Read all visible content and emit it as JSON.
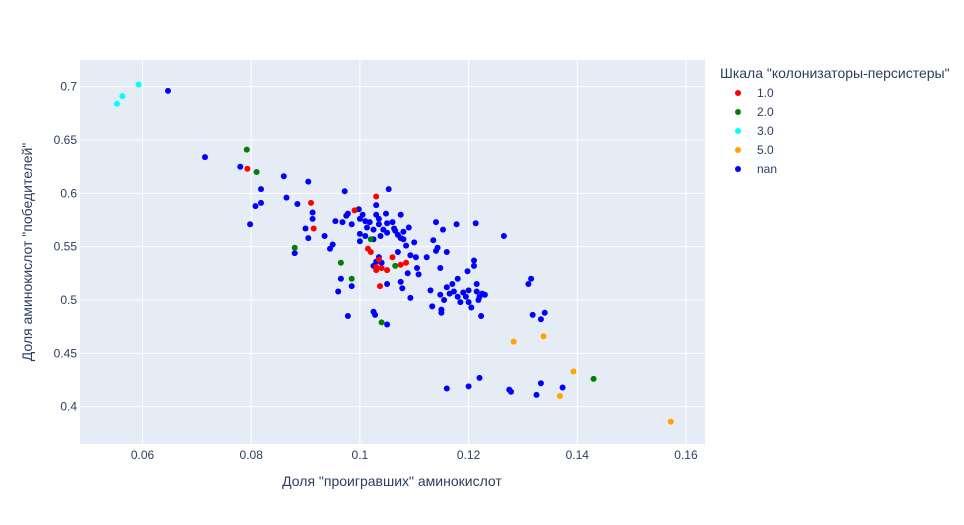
{
  "chart_data": {
    "type": "scatter",
    "xlabel": "Доля \"проигравших\" аминокислот",
    "ylabel": "Доля аминокислот \"победителей\"",
    "xlim": [
      0.0485,
      0.1635
    ],
    "ylim": [
      0.365,
      0.725
    ],
    "xticks": [
      0.06,
      0.08,
      0.1,
      0.12,
      0.14,
      0.16
    ],
    "xtick_labels": [
      "0.06",
      "0.08",
      "0.1",
      "0.12",
      "0.14",
      "0.16"
    ],
    "yticks": [
      0.4,
      0.45,
      0.5,
      0.55,
      0.6,
      0.65,
      0.7
    ],
    "ytick_labels": [
      "0.4",
      "0.45",
      "0.5",
      "0.55",
      "0.6",
      "0.65",
      "0.7"
    ],
    "grid": true,
    "plot_bgcolor": "#e5ecf6",
    "legend": {
      "title": "Шкала \"колонизаторы-персистеры\"",
      "placement": "right"
    },
    "series": [
      {
        "name": "1.0",
        "color": "#ff0000",
        "points": [
          [
            0.0793,
            0.623
          ],
          [
            0.091,
            0.591
          ],
          [
            0.0915,
            0.567
          ],
          [
            0.099,
            0.584
          ],
          [
            0.103,
            0.597
          ],
          [
            0.1015,
            0.548
          ],
          [
            0.102,
            0.545
          ],
          [
            0.106,
            0.54
          ],
          [
            0.1035,
            0.538
          ],
          [
            0.103,
            0.531
          ],
          [
            0.103,
            0.528
          ],
          [
            0.104,
            0.53
          ],
          [
            0.105,
            0.528
          ],
          [
            0.1075,
            0.533
          ],
          [
            0.1085,
            0.535
          ],
          [
            0.1037,
            0.513
          ]
        ]
      },
      {
        "name": "2.0",
        "color": "#008000",
        "points": [
          [
            0.0792,
            0.641
          ],
          [
            0.081,
            0.62
          ],
          [
            0.088,
            0.549
          ],
          [
            0.0965,
            0.535
          ],
          [
            0.0985,
            0.52
          ],
          [
            0.102,
            0.557
          ],
          [
            0.1065,
            0.532
          ],
          [
            0.104,
            0.479
          ],
          [
            0.143,
            0.426
          ]
        ]
      },
      {
        "name": "3.0",
        "color": "#00ffff",
        "points": [
          [
            0.0553,
            0.684
          ],
          [
            0.0563,
            0.691
          ],
          [
            0.0593,
            0.702
          ]
        ]
      },
      {
        "name": "5.0",
        "color": "#ffa500",
        "points": [
          [
            0.1283,
            0.461
          ],
          [
            0.1338,
            0.466
          ],
          [
            0.1393,
            0.433
          ],
          [
            0.1368,
            0.41
          ],
          [
            0.1572,
            0.386
          ]
        ]
      },
      {
        "name": "nan",
        "color": "#0000ff",
        "points": [
          [
            0.0647,
            0.696
          ],
          [
            0.0715,
            0.634
          ],
          [
            0.078,
            0.625
          ],
          [
            0.086,
            0.616
          ],
          [
            0.0818,
            0.604
          ],
          [
            0.0905,
            0.611
          ],
          [
            0.0865,
            0.596
          ],
          [
            0.0818,
            0.591
          ],
          [
            0.0808,
            0.588
          ],
          [
            0.0885,
            0.59
          ],
          [
            0.0798,
            0.571
          ],
          [
            0.088,
            0.544
          ],
          [
            0.0905,
            0.558
          ],
          [
            0.0913,
            0.582
          ],
          [
            0.0913,
            0.576
          ],
          [
            0.09,
            0.567
          ],
          [
            0.0935,
            0.56
          ],
          [
            0.0945,
            0.548
          ],
          [
            0.095,
            0.552
          ],
          [
            0.0955,
            0.574
          ],
          [
            0.0968,
            0.573
          ],
          [
            0.0975,
            0.579
          ],
          [
            0.0972,
            0.602
          ],
          [
            0.0978,
            0.581
          ],
          [
            0.0985,
            0.571
          ],
          [
            0.0998,
            0.585
          ],
          [
            0.1,
            0.576
          ],
          [
            0.1005,
            0.58
          ],
          [
            0.1,
            0.562
          ],
          [
            0.1,
            0.555
          ],
          [
            0.101,
            0.574
          ],
          [
            0.1013,
            0.568
          ],
          [
            0.101,
            0.56
          ],
          [
            0.1018,
            0.573
          ],
          [
            0.1025,
            0.566
          ],
          [
            0.1025,
            0.557
          ],
          [
            0.103,
            0.589
          ],
          [
            0.103,
            0.58
          ],
          [
            0.1035,
            0.576
          ],
          [
            0.1035,
            0.571
          ],
          [
            0.1038,
            0.56
          ],
          [
            0.1043,
            0.566
          ],
          [
            0.1048,
            0.581
          ],
          [
            0.105,
            0.572
          ],
          [
            0.105,
            0.563
          ],
          [
            0.1053,
            0.604
          ],
          [
            0.106,
            0.573
          ],
          [
            0.1063,
            0.567
          ],
          [
            0.1065,
            0.565
          ],
          [
            0.107,
            0.561
          ],
          [
            0.1075,
            0.58
          ],
          [
            0.1075,
            0.558
          ],
          [
            0.108,
            0.564
          ],
          [
            0.108,
            0.557
          ],
          [
            0.1085,
            0.551
          ],
          [
            0.109,
            0.568
          ],
          [
            0.11,
            0.554
          ],
          [
            0.1093,
            0.542
          ],
          [
            0.1103,
            0.54
          ],
          [
            0.107,
            0.545
          ],
          [
            0.1035,
            0.54
          ],
          [
            0.103,
            0.536
          ],
          [
            0.1025,
            0.532
          ],
          [
            0.104,
            0.535
          ],
          [
            0.0985,
            0.513
          ],
          [
            0.096,
            0.508
          ],
          [
            0.0965,
            0.52
          ],
          [
            0.0978,
            0.485
          ],
          [
            0.1025,
            0.489
          ],
          [
            0.1028,
            0.486
          ],
          [
            0.105,
            0.515
          ],
          [
            0.105,
            0.477
          ],
          [
            0.1075,
            0.517
          ],
          [
            0.1078,
            0.511
          ],
          [
            0.1088,
            0.525
          ],
          [
            0.1093,
            0.502
          ],
          [
            0.1105,
            0.53
          ],
          [
            0.1108,
            0.524
          ],
          [
            0.1123,
            0.54
          ],
          [
            0.113,
            0.509
          ],
          [
            0.1133,
            0.494
          ],
          [
            0.1135,
            0.556
          ],
          [
            0.114,
            0.546
          ],
          [
            0.114,
            0.573
          ],
          [
            0.1143,
            0.549
          ],
          [
            0.1148,
            0.53
          ],
          [
            0.1148,
            0.505
          ],
          [
            0.115,
            0.491
          ],
          [
            0.115,
            0.488
          ],
          [
            0.1153,
            0.566
          ],
          [
            0.1155,
            0.5
          ],
          [
            0.116,
            0.545
          ],
          [
            0.116,
            0.512
          ],
          [
            0.116,
            0.417
          ],
          [
            0.1165,
            0.506
          ],
          [
            0.117,
            0.515
          ],
          [
            0.1173,
            0.508
          ],
          [
            0.1178,
            0.571
          ],
          [
            0.118,
            0.52
          ],
          [
            0.118,
            0.503
          ],
          [
            0.1185,
            0.498
          ],
          [
            0.119,
            0.507
          ],
          [
            0.1195,
            0.503
          ],
          [
            0.1198,
            0.527
          ],
          [
            0.12,
            0.509
          ],
          [
            0.12,
            0.498
          ],
          [
            0.12,
            0.419
          ],
          [
            0.1205,
            0.493
          ],
          [
            0.121,
            0.537
          ],
          [
            0.121,
            0.532
          ],
          [
            0.1213,
            0.572
          ],
          [
            0.1215,
            0.515
          ],
          [
            0.1215,
            0.508
          ],
          [
            0.1218,
            0.5
          ],
          [
            0.122,
            0.503
          ],
          [
            0.122,
            0.427
          ],
          [
            0.1223,
            0.485
          ],
          [
            0.1225,
            0.506
          ],
          [
            0.123,
            0.505
          ],
          [
            0.1265,
            0.56
          ],
          [
            0.1275,
            0.416
          ],
          [
            0.1278,
            0.414
          ],
          [
            0.131,
            0.515
          ],
          [
            0.1315,
            0.52
          ],
          [
            0.1318,
            0.486
          ],
          [
            0.1325,
            0.411
          ],
          [
            0.1333,
            0.482
          ],
          [
            0.1333,
            0.422
          ],
          [
            0.134,
            0.488
          ],
          [
            0.1373,
            0.418
          ]
        ]
      }
    ]
  }
}
